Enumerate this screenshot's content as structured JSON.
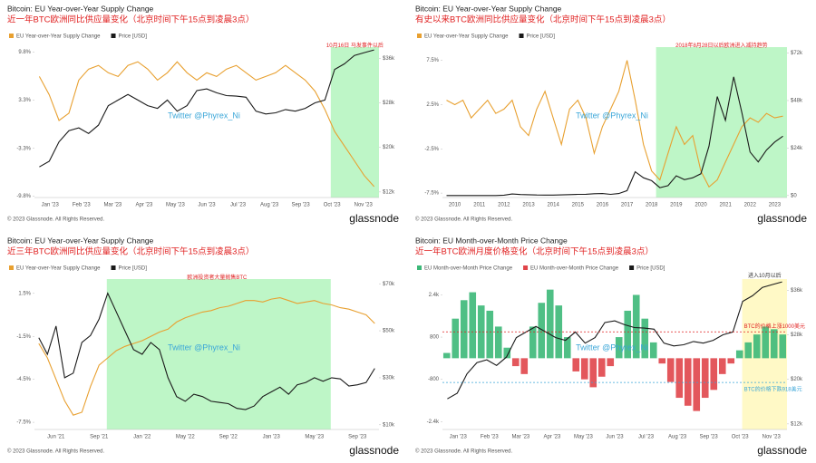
{
  "watermark": "Twitter @Phyrex_Ni",
  "footer": {
    "copyright": "© 2023 Glassnode. All Rights Reserved.",
    "brand": "glassnode"
  },
  "chart_data": [
    {
      "type": "line",
      "title": "Bitcoin: EU Year-over-Year Supply Change",
      "subtitle": "近一年BTC欧洲同比供应量变化（北京时间下午15点到凌晨3点）",
      "annotations": [
        {
          "text": "10月16日 马发事件以后"
        }
      ],
      "xtick_labels": [
        "Jan '23",
        "Feb '23",
        "Mar '23",
        "Apr '23",
        "May '23",
        "Jun '23",
        "Jul '23",
        "Aug '23",
        "Sep '23",
        "Oct '23",
        "Nov '23"
      ],
      "ylim": [
        -10,
        10.5
      ],
      "yticks": [
        {
          "value": -9.8,
          "label": "-9.8%"
        },
        {
          "value": -3.3,
          "label": "-3.3%"
        },
        {
          "value": 3.3,
          "label": "3.3%"
        },
        {
          "value": 9.8,
          "label": "9.8%"
        }
      ],
      "y2lim": [
        11000,
        38000
      ],
      "y2ticks": [
        {
          "value": 12000,
          "label": "$12k"
        },
        {
          "value": 20000,
          "label": "$20k"
        },
        {
          "value": 28000,
          "label": "$28k"
        },
        {
          "value": 36000,
          "label": "$36k"
        }
      ],
      "series": [
        {
          "name": "EU Year-over-Year Supply Change",
          "color": "#e8a030",
          "type": "line",
          "values": [
            6.5,
            4,
            0.5,
            1.5,
            6,
            7.5,
            8,
            7,
            6.5,
            8,
            8.5,
            7.5,
            6,
            7,
            8.5,
            7,
            6,
            7,
            6.5,
            7.5,
            8,
            7,
            6,
            6.5,
            7,
            8,
            7,
            6,
            4.5,
            2,
            -1,
            -3,
            -5,
            -7,
            -8.5
          ]
        },
        {
          "name": "Price [USD]",
          "color": "#1a1a1a",
          "type": "line",
          "axis": "y2",
          "values": [
            16500,
            17500,
            21000,
            23000,
            23500,
            22500,
            24000,
            27500,
            28500,
            29500,
            28500,
            27500,
            27000,
            28500,
            26500,
            27500,
            30200,
            30500,
            29800,
            29300,
            29200,
            29000,
            26500,
            26000,
            26200,
            26800,
            26500,
            27000,
            28000,
            28500,
            34000,
            35000,
            36500,
            37000,
            37500
          ]
        }
      ]
    },
    {
      "type": "line",
      "title": "Bitcoin: EU Year-over-Year Supply Change",
      "subtitle": "有史以来BTC欧洲同比供应量变化（北京时间下午15点到凌晨3点）",
      "annotations": [
        {
          "text": "2018年8月28日以后欧洲进入减持趋势"
        }
      ],
      "xtick_labels": [
        "2010",
        "2011",
        "2012",
        "2013",
        "2014",
        "2015",
        "2016",
        "2017",
        "2018",
        "2019",
        "2020",
        "2021",
        "2022",
        "2023"
      ],
      "ylim": [
        -8,
        9
      ],
      "yticks": [
        {
          "value": -7.5,
          "label": "-7.5%"
        },
        {
          "value": -2.5,
          "label": "-2.5%"
        },
        {
          "value": 2.5,
          "label": "2.5%"
        },
        {
          "value": 7.5,
          "label": "7.5%"
        }
      ],
      "y2lim": [
        -1000,
        75000
      ],
      "y2ticks": [
        {
          "value": 0,
          "label": "$0"
        },
        {
          "value": 24000,
          "label": "$24k"
        },
        {
          "value": 48000,
          "label": "$48k"
        },
        {
          "value": 72000,
          "label": "$72k"
        }
      ],
      "series": [
        {
          "name": "EU Year-over-Year Supply Change",
          "color": "#e8a030",
          "type": "line",
          "values": [
            3,
            2.5,
            3,
            1,
            2,
            3,
            1.5,
            2,
            3,
            0,
            -1,
            2,
            4,
            1,
            -2,
            2,
            3,
            1,
            -3,
            0,
            2,
            4,
            7.5,
            3,
            -2,
            -5,
            -6,
            -3,
            0,
            -2,
            -1,
            -5,
            -6.8,
            -6,
            -4,
            -2,
            0,
            1,
            0.5,
            1.5,
            1,
            1.2
          ]
        },
        {
          "name": "Price [USD]",
          "color": "#1a1a1a",
          "type": "line",
          "axis": "y2",
          "values": [
            0,
            0,
            0,
            0,
            0,
            0,
            10,
            200,
            800,
            500,
            400,
            300,
            250,
            250,
            350,
            450,
            600,
            650,
            900,
            1000,
            600,
            1000,
            2500,
            12000,
            9000,
            7500,
            4000,
            5000,
            10000,
            8000,
            9000,
            11000,
            25000,
            50000,
            38000,
            60000,
            42000,
            22000,
            17000,
            23000,
            27000,
            30000
          ]
        }
      ]
    },
    {
      "type": "line",
      "title": "Bitcoin: EU Year-over-Year Supply Change",
      "subtitle": "近三年BTC欧洲同比供应量变化（北京时间下午15点到凌晨3点）",
      "annotations": [
        {
          "text": "欧洲投资者大量抛售BTC"
        }
      ],
      "xtick_labels": [
        "Jun '21",
        "Sep '21",
        "Jan '22",
        "May '22",
        "Sep '22",
        "Jan '23",
        "May '23",
        "Sep '23"
      ],
      "ylim": [
        -8,
        2.5
      ],
      "yticks": [
        {
          "value": -7.5,
          "label": "-7.5%"
        },
        {
          "value": -4.5,
          "label": "-4.5%"
        },
        {
          "value": -1.5,
          "label": "-1.5%"
        },
        {
          "value": 1.5,
          "label": "1.5%"
        }
      ],
      "y2lim": [
        8000,
        72000
      ],
      "y2ticks": [
        {
          "value": 10000,
          "label": "$10k"
        },
        {
          "value": 30000,
          "label": "$30k"
        },
        {
          "value": 50000,
          "label": "$50k"
        },
        {
          "value": 70000,
          "label": "$70k"
        }
      ],
      "series": [
        {
          "name": "EU Year-over-Year Supply Change",
          "color": "#e8a030",
          "type": "line",
          "values": [
            -2,
            -3,
            -4.5,
            -6,
            -7,
            -6.8,
            -5,
            -3.5,
            -3,
            -2.5,
            -2.2,
            -2,
            -1.8,
            -1.5,
            -1.2,
            -1,
            -0.5,
            -0.2,
            0,
            0.2,
            0.3,
            0.5,
            0.6,
            0.8,
            1,
            1,
            0.9,
            1.1,
            1.2,
            1,
            0.8,
            0.9,
            1,
            0.8,
            0.7,
            0.5,
            0.4,
            0.2,
            0,
            -0.6
          ]
        },
        {
          "name": "Price [USD]",
          "color": "#1a1a1a",
          "type": "line",
          "axis": "y2",
          "values": [
            47000,
            40000,
            52000,
            30000,
            32000,
            45000,
            48000,
            55000,
            66000,
            58000,
            50000,
            42000,
            40000,
            45000,
            42000,
            30000,
            22000,
            20000,
            23000,
            22000,
            20000,
            19500,
            19000,
            17000,
            16500,
            18000,
            22000,
            24000,
            26000,
            23000,
            27000,
            28000,
            30000,
            28500,
            30000,
            29500,
            26500,
            27000,
            28000,
            34000
          ]
        }
      ]
    },
    {
      "type": "bar",
      "title": "Bitcoin: EU Month-over-Month Price Change",
      "subtitle": "近一年BTC欧洲月度价格变化（北京时间下午15点到凌晨3点）",
      "annotations": [
        {
          "text": "进入10月以后"
        },
        {
          "text": "BTC的价格上涨1000美元",
          "value": 1000
        },
        {
          "text": "BTC的价格下跌918美元",
          "value": -918
        }
      ],
      "xtick_labels": [
        "Jan '23",
        "Feb '23",
        "Mar '23",
        "Apr '23",
        "May '23",
        "Jun '23",
        "Jul '23",
        "Aug '23",
        "Sep '23",
        "Oct '23",
        "Nov '23"
      ],
      "ylim": [
        -2700,
        3000
      ],
      "yticks": [
        {
          "value": -2400,
          "label": "-2.4k"
        },
        {
          "value": -800,
          "label": "-800"
        },
        800,
        {
          "value": 2400,
          "label": "2.4k"
        }
      ],
      "y2lim": [
        11000,
        38000
      ],
      "y2ticks": [
        {
          "value": 12000,
          "label": "$12k"
        },
        {
          "value": 20000,
          "label": "$20k"
        },
        {
          "value": 28000,
          "label": "$28k"
        },
        {
          "value": 36000,
          "label": "$36k"
        }
      ],
      "series": [
        {
          "name": "EU Month-over-Month Price Change",
          "color": "#3cb878",
          "type": "bar",
          "values": [
            200,
            1500,
            2200,
            2500,
            2000,
            1800,
            1200,
            400,
            null,
            null,
            1200,
            2100,
            2600,
            2000,
            800,
            null,
            null,
            null,
            null,
            null,
            800,
            1800,
            2400,
            1500,
            600,
            null,
            null,
            null,
            null,
            null,
            null,
            null,
            null,
            null,
            300,
            600,
            900,
            1200,
            1100,
            900
          ]
        },
        {
          "name": "EU Month-over-Month Price Change",
          "color": "#e0454a",
          "type": "bar",
          "values": [
            null,
            null,
            null,
            null,
            null,
            null,
            null,
            null,
            -300,
            -600,
            null,
            null,
            null,
            null,
            null,
            -500,
            -800,
            -1100,
            -700,
            -300,
            null,
            null,
            null,
            null,
            null,
            -200,
            -900,
            -1500,
            -1800,
            -2000,
            -1500,
            -1200,
            -600,
            -200,
            null,
            null,
            null,
            null,
            null,
            null
          ]
        },
        {
          "name": "Price [USD]",
          "color": "#1a1a1a",
          "type": "line",
          "axis": "y2",
          "values": [
            16500,
            17500,
            21000,
            23000,
            23500,
            22500,
            24000,
            27500,
            28500,
            29500,
            28500,
            27500,
            27000,
            28500,
            26500,
            27500,
            30200,
            30500,
            29800,
            29300,
            29200,
            29000,
            26500,
            26000,
            26200,
            26800,
            26500,
            27000,
            28000,
            28500,
            34000,
            35000,
            36500,
            37000,
            37500
          ]
        }
      ]
    }
  ]
}
